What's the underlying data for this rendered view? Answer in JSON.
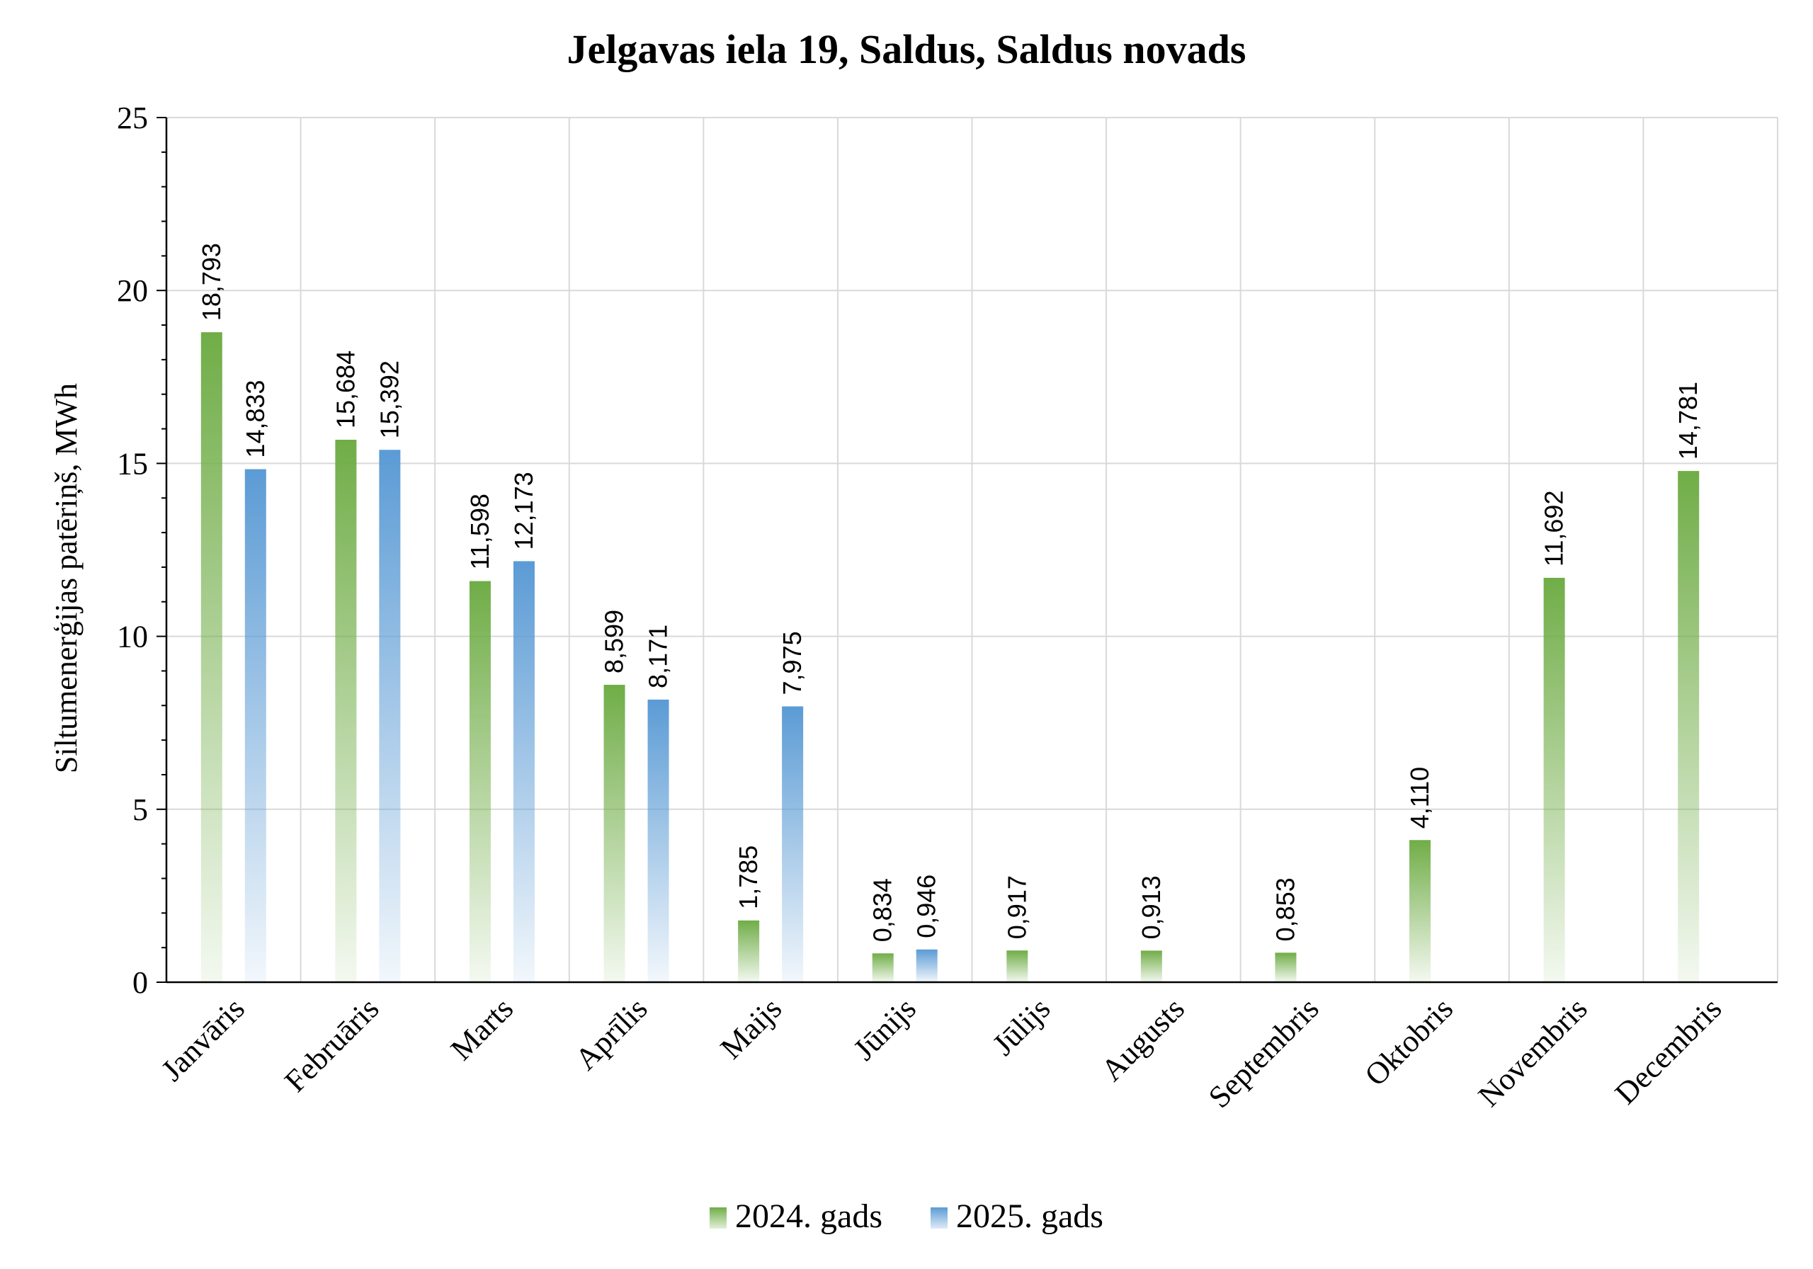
{
  "chart_data": {
    "type": "bar",
    "title": "Jelgavas iela 19, Saldus, Saldus novads",
    "ylabel": "Siltumenerģijas patēriņš, MWh",
    "xlabel": "",
    "ylim": [
      0,
      25
    ],
    "yticks": [
      "0",
      "5",
      "10",
      "15",
      "20",
      "25"
    ],
    "grid": true,
    "legend_position": "bottom",
    "categories": [
      "Janvāris",
      "Februāris",
      "Marts",
      "Aprīlis",
      "Maijs",
      "Jūnijs",
      "Jūlijs",
      "Augusts",
      "Septembris",
      "Oktobris",
      "Novembris",
      "Decembris"
    ],
    "series": [
      {
        "name": "2024. gads",
        "color": "#70ad47",
        "values": [
          18.793,
          15.684,
          11.598,
          8.599,
          1.785,
          0.834,
          0.917,
          0.913,
          0.853,
          4.11,
          11.692,
          14.781
        ],
        "labels": [
          "18,793",
          "15,684",
          "11,598",
          "8,599",
          "1,785",
          "0,834",
          "0,917",
          "0,913",
          "0,853",
          "4,110",
          "11,692",
          "14,781"
        ]
      },
      {
        "name": "2025. gads",
        "color": "#5b9bd5",
        "values": [
          14.833,
          15.392,
          12.173,
          8.171,
          7.975,
          0.946,
          null,
          null,
          null,
          null,
          null,
          null
        ],
        "labels": [
          "14,833",
          "15,392",
          "12,173",
          "8,171",
          "7,975",
          "0,946",
          null,
          null,
          null,
          null,
          null,
          null
        ]
      }
    ]
  }
}
